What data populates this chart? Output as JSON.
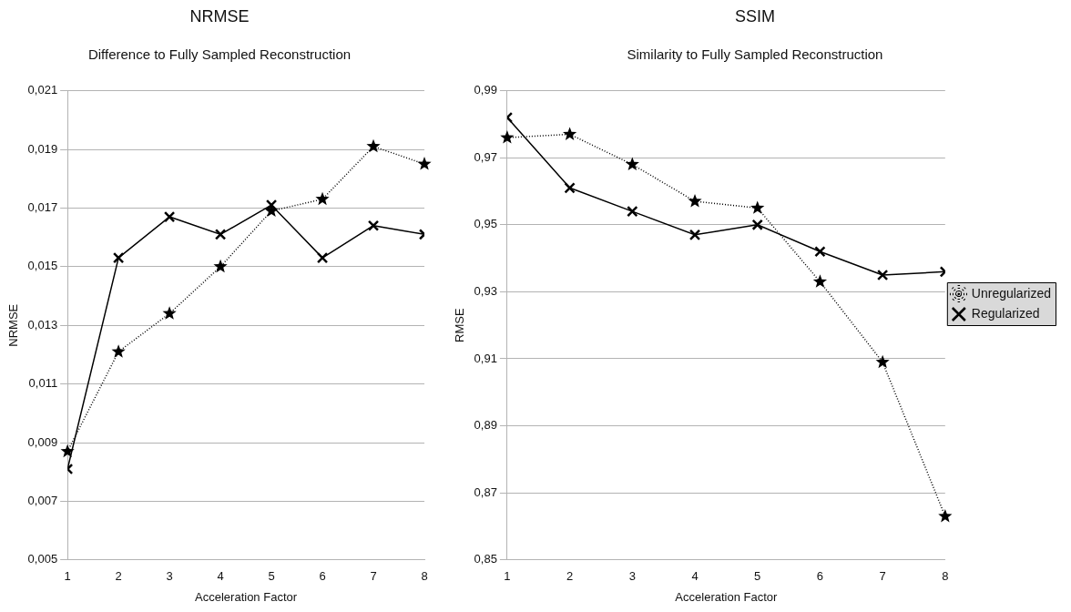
{
  "chart_data": [
    {
      "type": "line",
      "title": "NRMSE",
      "subtitle": "Difference to Fully Sampled Reconstruction",
      "xlabel": "Acceleration Factor",
      "ylabel": "NRMSE",
      "x": [
        1,
        2,
        3,
        4,
        5,
        6,
        7,
        8
      ],
      "series": [
        {
          "color": "#000000",
          "marker": "star",
          "line_style": "dotted",
          "values": [
            0.0087,
            0.0121,
            0.0134,
            0.015,
            0.0169,
            0.0173,
            0.0191,
            0.0185
          ]
        },
        {
          "color": "#000000",
          "marker": "cross",
          "line_style": "solid",
          "values": [
            0.0081,
            0.0153,
            0.0167,
            0.0161,
            0.0171,
            0.0153,
            0.0164,
            0.0161
          ]
        }
      ],
      "xlim": [
        1,
        8
      ],
      "xticks": [
        1,
        2,
        3,
        4,
        5,
        6,
        7,
        8
      ],
      "ylim": [
        0.005,
        0.021
      ],
      "yticks": [
        {
          "value": 0.005,
          "label": "0,005"
        },
        {
          "value": 0.007,
          "label": "0,007"
        },
        {
          "value": 0.009,
          "label": "0,009"
        },
        {
          "value": 0.011,
          "label": "0,011"
        },
        {
          "value": 0.013,
          "label": "0,013"
        },
        {
          "value": 0.015,
          "label": "0,015"
        },
        {
          "value": 0.017,
          "label": "0,017"
        },
        {
          "value": 0.019,
          "label": "0,019"
        },
        {
          "value": 0.021,
          "label": "0,021"
        }
      ],
      "grid": "y",
      "legend": false
    },
    {
      "type": "line",
      "title": "SSIM",
      "subtitle": "Similarity to Fully Sampled Reconstruction",
      "xlabel": "Acceleration Factor",
      "ylabel": "RMSE",
      "x": [
        1,
        2,
        3,
        4,
        5,
        6,
        7,
        8
      ],
      "series": [
        {
          "name": "Unregularized",
          "color": "#000000",
          "marker": "star",
          "line_style": "dotted",
          "values": [
            0.976,
            0.977,
            0.968,
            0.957,
            0.955,
            0.933,
            0.909,
            0.863
          ]
        },
        {
          "name": "Regularized",
          "color": "#000000",
          "marker": "cross",
          "line_style": "solid",
          "values": [
            0.982,
            0.961,
            0.954,
            0.947,
            0.95,
            0.942,
            0.935,
            0.936
          ]
        }
      ],
      "xlim": [
        1,
        8
      ],
      "xticks": [
        1,
        2,
        3,
        4,
        5,
        6,
        7,
        8
      ],
      "ylim": [
        0.85,
        0.99
      ],
      "yticks": [
        {
          "value": 0.85,
          "label": "0,85"
        },
        {
          "value": 0.87,
          "label": "0,87"
        },
        {
          "value": 0.89,
          "label": "0,89"
        },
        {
          "value": 0.91,
          "label": "0,91"
        },
        {
          "value": 0.93,
          "label": "0,93"
        },
        {
          "value": 0.95,
          "label": "0,95"
        },
        {
          "value": 0.97,
          "label": "0,97"
        },
        {
          "value": 0.99,
          "label": "0,99"
        }
      ],
      "grid": "y",
      "legend": "right"
    }
  ]
}
